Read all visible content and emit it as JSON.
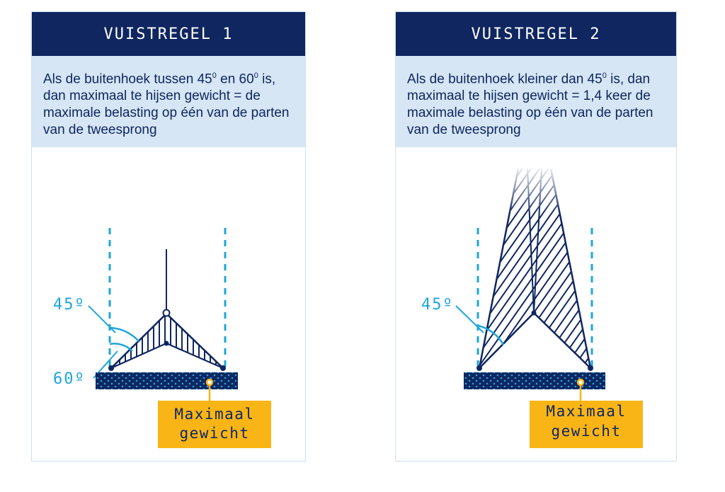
{
  "panels": [
    {
      "title": "VUISTREGEL 1",
      "text_parts": [
        "Als de buitenhoek tussen 45",
        "0",
        " en 60",
        "0",
        " is, dan maximaal te hijsen gewicht = de maximale belasting op één van de parten van de tweesprong"
      ],
      "angle_labels": [
        "45º",
        "60º"
      ],
      "weight_label": [
        "Maximaal",
        "gewicht"
      ]
    },
    {
      "title": "VUISTREGEL 2",
      "text_parts": [
        "Als de buitenhoek kleiner dan 45",
        "0",
        " is, dan maximaal te hijsen gewicht = 1,4 keer de maximale belasting op één van de parten van de tweesprong"
      ],
      "angle_labels": [
        "45º"
      ],
      "weight_label": [
        "Maximaal",
        "gewicht"
      ]
    }
  ],
  "colors": {
    "navy": "#0f2660",
    "light_blue_bg": "#d6e6f4",
    "cyan": "#1ea5dc",
    "yellow": "#f9b515",
    "border": "#cfe0ee"
  }
}
